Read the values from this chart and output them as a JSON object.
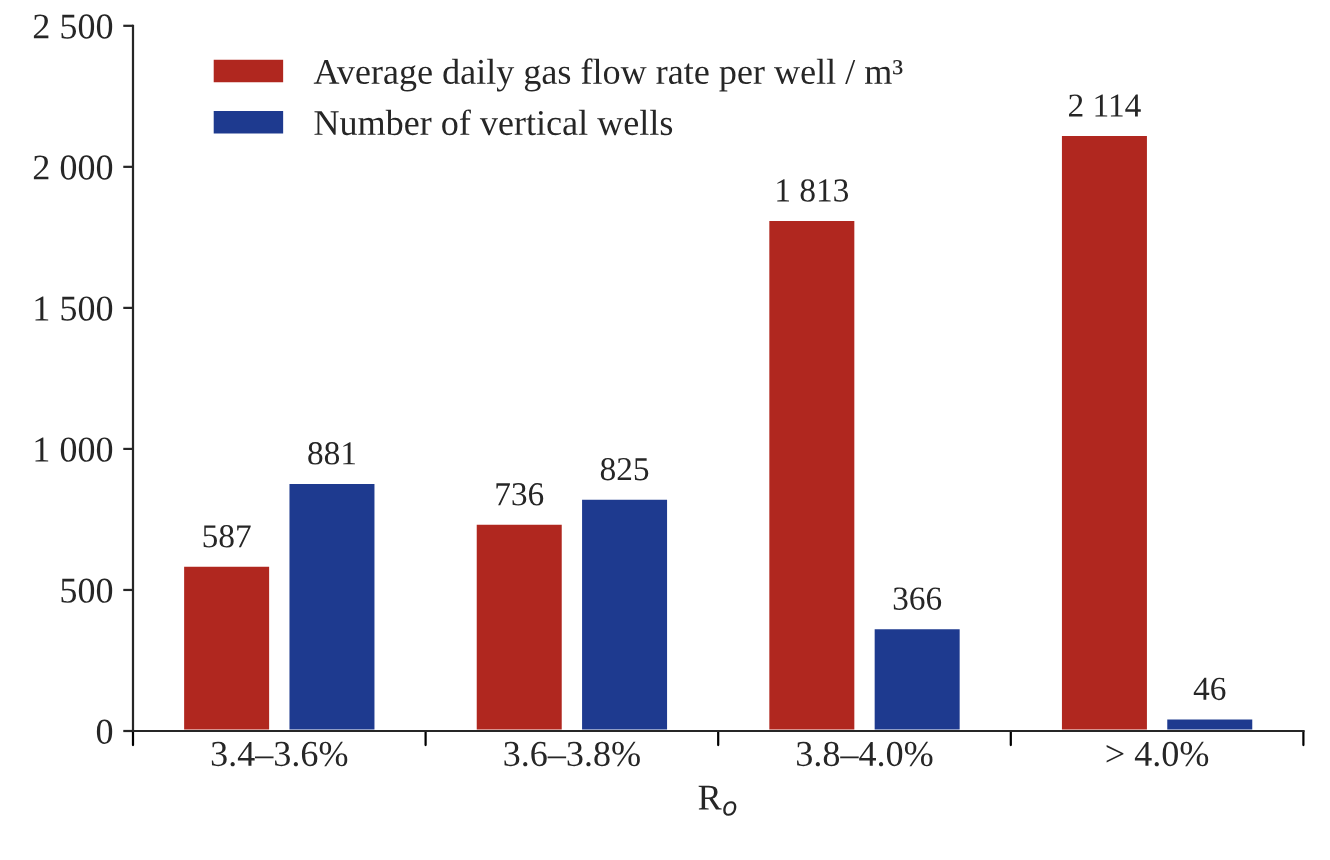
{
  "chart_data": {
    "type": "bar",
    "categories": [
      "3.4–3.6%",
      "3.6–3.8%",
      "3.8–4.0%",
      "> 4.0%"
    ],
    "xlabel": "R$_{o}$",
    "series": [
      {
        "name": "Average daily gas flow rate per well / m³",
        "color": "#b0271f",
        "values": [
          587,
          736,
          1813,
          2114
        ],
        "value_labels": [
          "587",
          "736",
          "1 813",
          "2 114"
        ]
      },
      {
        "name": "Number of vertical wells",
        "color": "#1e3a8f",
        "values": [
          881,
          825,
          366,
          46
        ],
        "value_labels": [
          "881",
          "825",
          "366",
          "46"
        ]
      }
    ],
    "ylim": [
      0,
      2500
    ],
    "yticks": [
      0,
      500,
      {
        "value": 1000,
        "label": "1 000"
      },
      {
        "value": 1500,
        "label": "1 500"
      },
      {
        "value": 2000,
        "label": "2 000"
      },
      {
        "value": 2500,
        "label": "2 500"
      }
    ],
    "grid": false,
    "legend": "top left"
  }
}
